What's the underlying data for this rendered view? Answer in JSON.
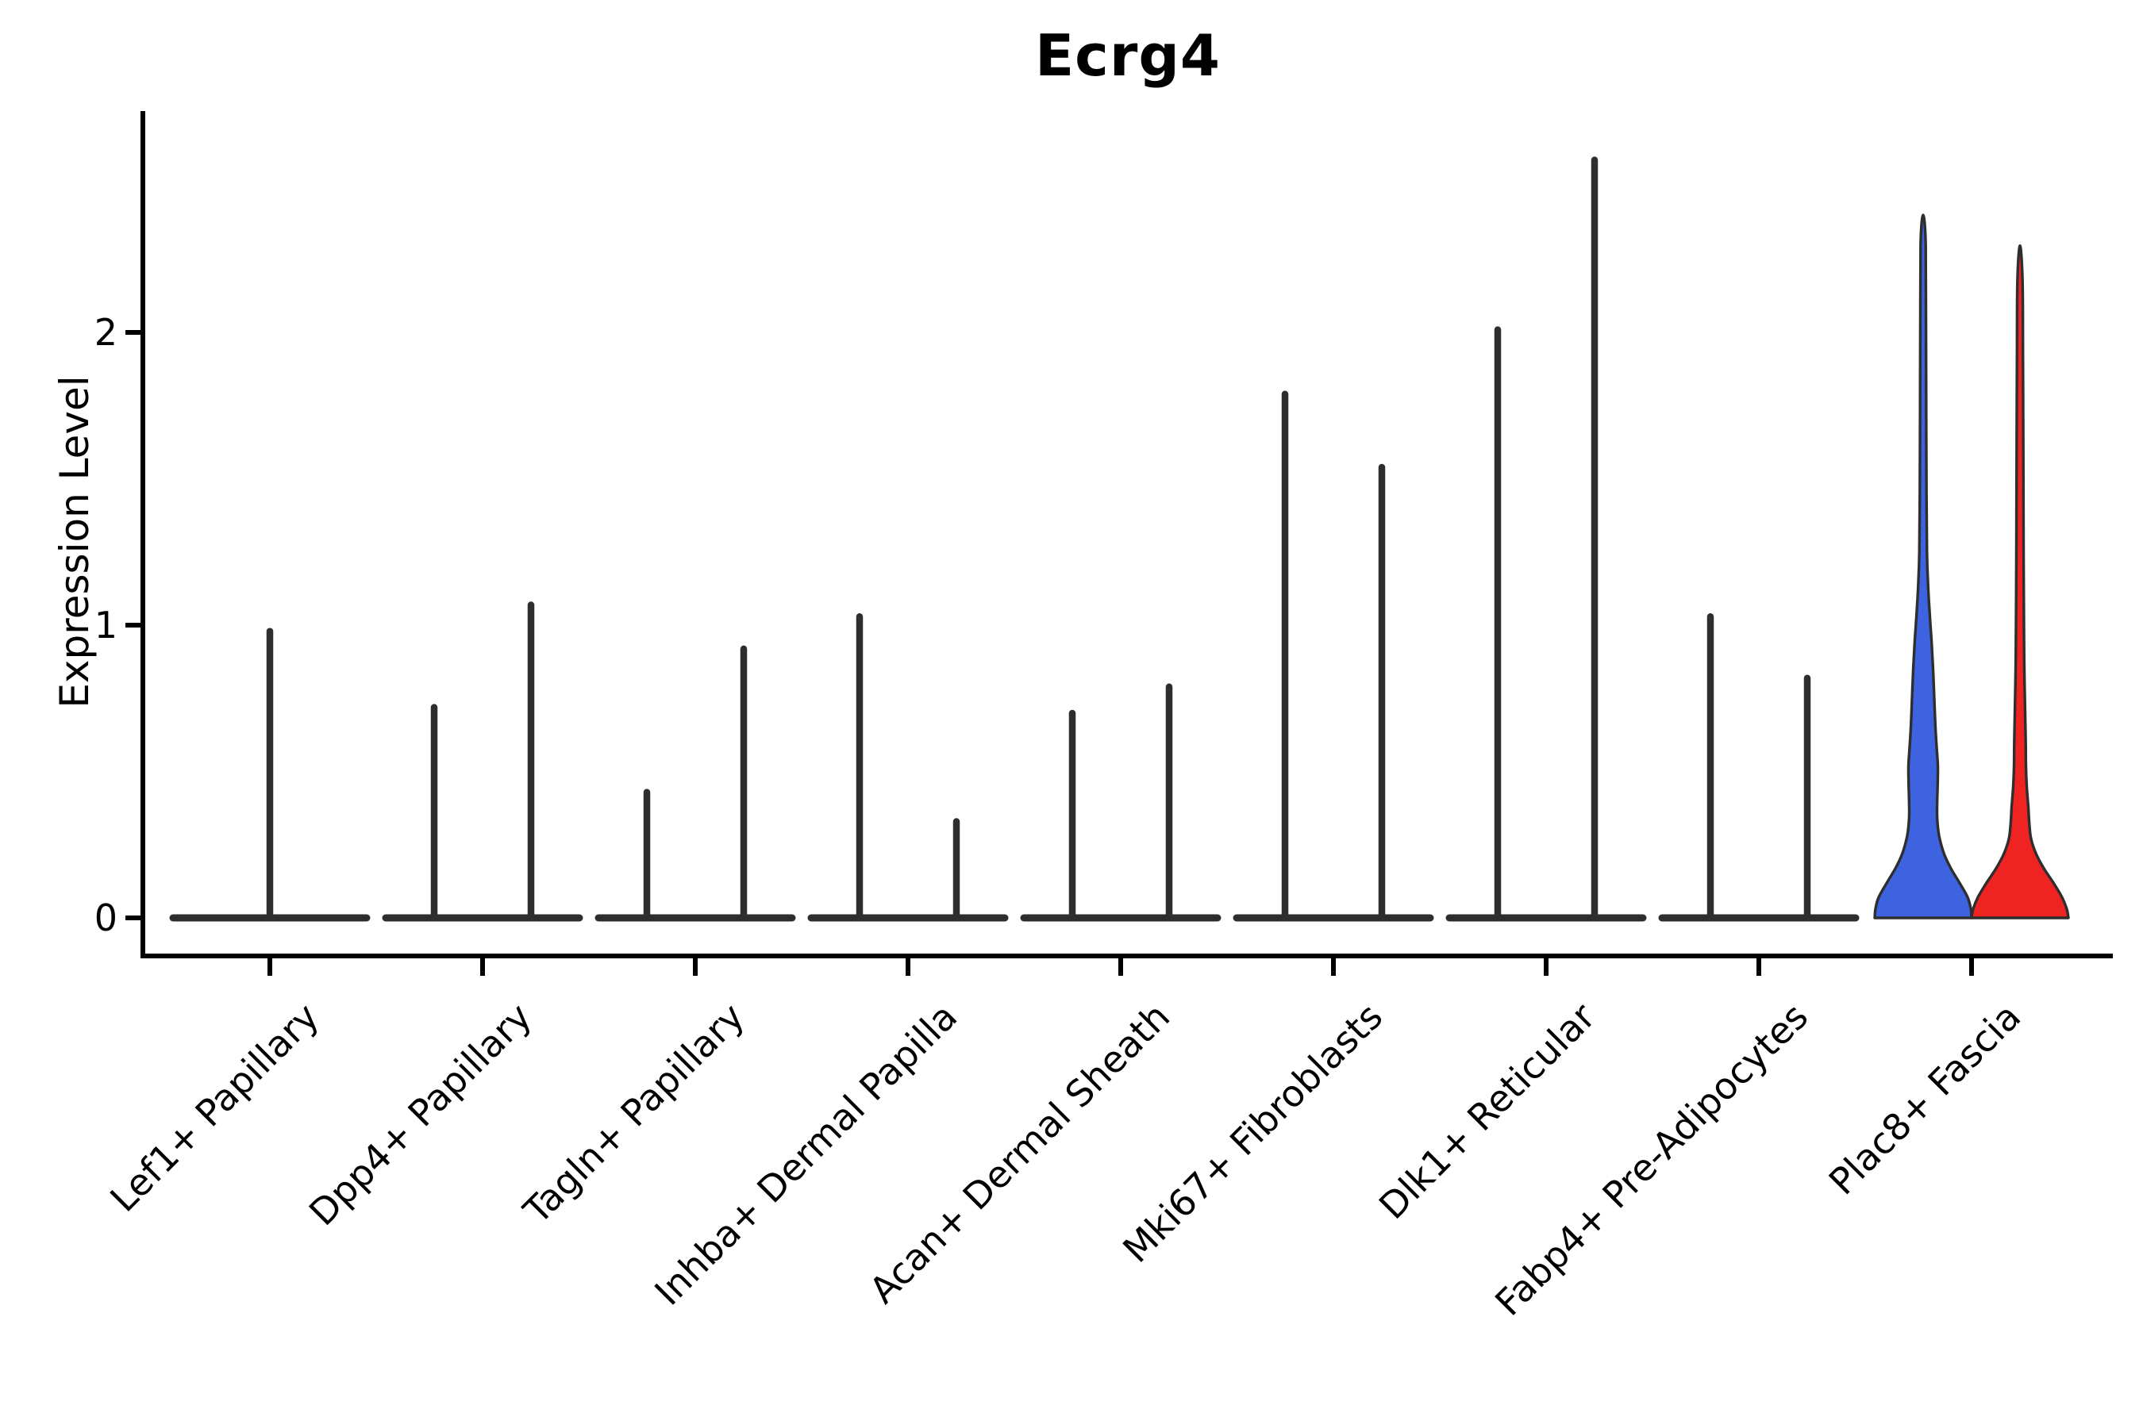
{
  "title": "Ecrg4",
  "axes": {
    "ylabel": "Expression Level",
    "ytick_labels": [
      "0",
      "1",
      "2"
    ]
  },
  "chart_data": {
    "type": "violin",
    "title": "Ecrg4",
    "xlabel": "",
    "ylabel": "Expression Level",
    "yticks": [
      0,
      1,
      2
    ],
    "ylim": [
      -0.07,
      2.83
    ],
    "grid": false,
    "legend": null,
    "categories": [
      "Lef1+ Papillary",
      "Dpp4+ Papillary",
      "Tagln+ Papillary",
      "Inhba+ Dermal Papilla",
      "Acan+ Dermal Sheath",
      "Mki67+ Fibroblasts",
      "Dlk1+ Reticular",
      "Fabp4+ Pre-Adipocytes",
      "Plac8+ Fascia"
    ],
    "note": "Each category holds two flat near-zero violins (collapsed to spikes) except Lef1+ Papillary which shows a single centered spike, and Plac8+ Fascia which shows one blue and one red filled violin.",
    "violins": [
      {
        "category": "Lef1+ Papillary",
        "glyphs": [
          {
            "kind": "spike",
            "slot": "center",
            "max": 0.99
          }
        ]
      },
      {
        "category": "Dpp4+ Papillary",
        "glyphs": [
          {
            "kind": "spike",
            "slot": "left",
            "max": 0.73
          },
          {
            "kind": "spike",
            "slot": "right",
            "max": 1.08
          }
        ]
      },
      {
        "category": "Tagln+ Papillary",
        "glyphs": [
          {
            "kind": "spike",
            "slot": "left",
            "max": 0.44
          },
          {
            "kind": "spike",
            "slot": "right",
            "max": 0.93
          }
        ]
      },
      {
        "category": "Inhba+ Dermal Papilla",
        "glyphs": [
          {
            "kind": "spike",
            "slot": "left",
            "max": 1.04
          },
          {
            "kind": "spike",
            "slot": "right",
            "max": 0.34
          }
        ]
      },
      {
        "category": "Acan+ Dermal Sheath",
        "glyphs": [
          {
            "kind": "spike",
            "slot": "left",
            "max": 0.71
          },
          {
            "kind": "spike",
            "slot": "right",
            "max": 0.8
          }
        ]
      },
      {
        "category": "Mki67+ Fibroblasts",
        "glyphs": [
          {
            "kind": "spike",
            "slot": "left",
            "max": 1.8
          },
          {
            "kind": "spike",
            "slot": "right",
            "max": 1.55
          }
        ]
      },
      {
        "category": "Dlk1+ Reticular",
        "glyphs": [
          {
            "kind": "spike",
            "slot": "left",
            "max": 2.02
          },
          {
            "kind": "spike",
            "slot": "right",
            "max": 2.6
          }
        ]
      },
      {
        "category": "Fabp4+ Pre-Adipocytes",
        "glyphs": [
          {
            "kind": "spike",
            "slot": "left",
            "max": 1.04
          },
          {
            "kind": "spike",
            "slot": "right",
            "max": 0.83
          }
        ]
      },
      {
        "category": "Plac8+ Fascia",
        "glyphs": [
          {
            "kind": "violin",
            "slot": "left",
            "fill": "#3E63E0",
            "max": 2.39,
            "profile": [
              [
                0,
                1.0
              ],
              [
                0.03,
                0.985
              ],
              [
                0.07,
                0.92
              ],
              [
                0.12,
                0.75
              ],
              [
                0.17,
                0.57
              ],
              [
                0.22,
                0.43
              ],
              [
                0.28,
                0.33
              ],
              [
                0.34,
                0.29
              ],
              [
                0.4,
                0.29
              ],
              [
                0.46,
                0.3
              ],
              [
                0.52,
                0.303
              ],
              [
                0.58,
                0.28
              ],
              [
                0.65,
                0.254
              ],
              [
                0.75,
                0.23
              ],
              [
                0.85,
                0.205
              ],
              [
                0.95,
                0.172
              ],
              [
                1.05,
                0.131
              ],
              [
                1.15,
                0.098
              ],
              [
                1.25,
                0.079
              ],
              [
                1.45,
                0.069
              ],
              [
                1.8,
                0.062
              ],
              [
                2.1,
                0.057
              ],
              [
                2.3,
                0.052
              ],
              [
                2.39,
                0.02
              ]
            ]
          },
          {
            "kind": "violin",
            "slot": "right",
            "fill": "#F02323",
            "max": 2.28,
            "profile": [
              [
                0,
                1.0
              ],
              [
                0.03,
                0.967
              ],
              [
                0.07,
                0.87
              ],
              [
                0.12,
                0.69
              ],
              [
                0.17,
                0.49
              ],
              [
                0.22,
                0.33
              ],
              [
                0.27,
                0.23
              ],
              [
                0.32,
                0.193
              ],
              [
                0.38,
                0.172
              ],
              [
                0.45,
                0.139
              ],
              [
                0.52,
                0.123
              ],
              [
                0.6,
                0.118
              ],
              [
                0.7,
                0.107
              ],
              [
                0.85,
                0.09
              ],
              [
                1.0,
                0.082
              ],
              [
                1.3,
                0.074
              ],
              [
                1.6,
                0.069
              ],
              [
                1.9,
                0.062
              ],
              [
                2.15,
                0.056
              ],
              [
                2.28,
                0.02
              ]
            ]
          }
        ]
      }
    ],
    "colors": {
      "spike_stroke": "#2e2e2e",
      "violin_outline": "#2e2e2e",
      "axis": "#000000",
      "blue_fill": "#3E63E0",
      "red_fill": "#F02323",
      "background": "#ffffff"
    }
  }
}
